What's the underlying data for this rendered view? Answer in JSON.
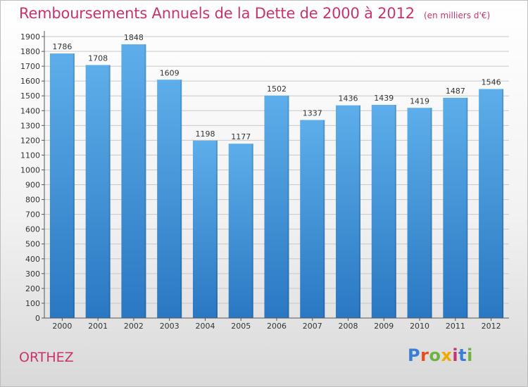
{
  "header": {
    "title": "Remboursements Annuels de la Dette de 2000 à 2012",
    "subtitle": "(en milliers d'€)"
  },
  "footer": {
    "city": "ORTHEZ",
    "logo": "Proxiti",
    "logo_colors": [
      "#3a7fd5",
      "#e84e1b",
      "#6cb33f",
      "#f2a900",
      "#c8336e",
      "#3a7fd5",
      "#6cb33f"
    ]
  },
  "chart_data": {
    "type": "bar",
    "title": "Remboursements Annuels de la Dette de 2000 à 2012",
    "subtitle": "(en milliers d'€)",
    "categories": [
      "2000",
      "2001",
      "2002",
      "2003",
      "2004",
      "2005",
      "2006",
      "2007",
      "2008",
      "2009",
      "2010",
      "2011",
      "2012"
    ],
    "values": [
      1786,
      1708,
      1848,
      1609,
      1198,
      1177,
      1502,
      1337,
      1436,
      1439,
      1419,
      1487,
      1546
    ],
    "xlabel": "",
    "ylabel": "",
    "ylim": [
      0,
      1900
    ],
    "ytick_step": 100,
    "grid": true,
    "data_labels": true,
    "colors": {
      "bar_top": "#5daeea",
      "bar_bottom": "#2a78c2",
      "axis": "#555555",
      "grid": "#c8c8c8"
    }
  }
}
